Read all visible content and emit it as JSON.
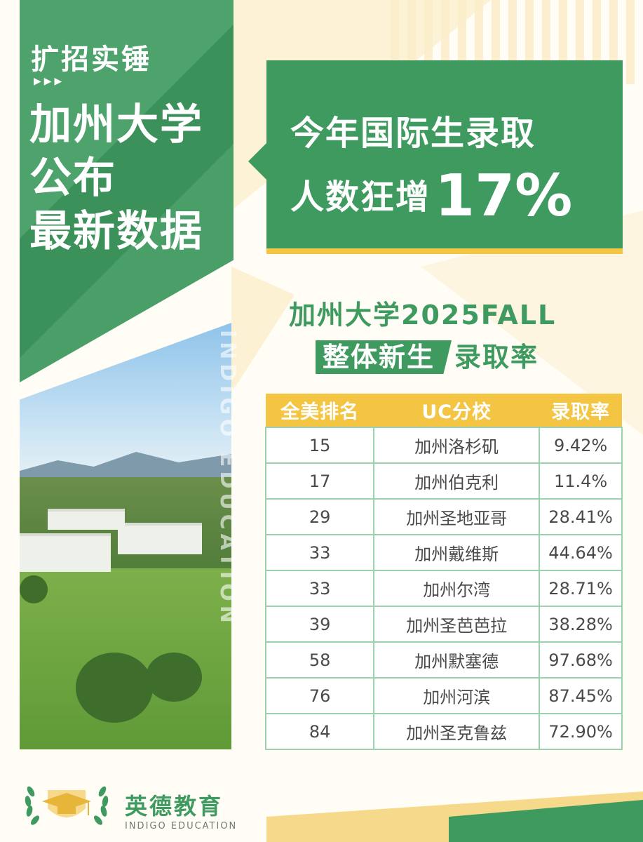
{
  "left": {
    "tagline": "扩招实锤",
    "arrows": "▶▶▶",
    "headline_lines": [
      "加州大学",
      "公布",
      "最新数据"
    ]
  },
  "callout": {
    "line1": "今年国际生录取",
    "line2": "人数狂增",
    "percent": "17%"
  },
  "watermark": "INDIGO EDUCATION",
  "title": {
    "line1": "加州大学2025FALL",
    "highlight": "整体新生",
    "rest": "录取率"
  },
  "table": {
    "headers": [
      "全美排名",
      "UC分校",
      "录取率"
    ],
    "rows": [
      [
        "15",
        "加州洛杉矶",
        "9.42%"
      ],
      [
        "17",
        "加州伯克利",
        "11.4%"
      ],
      [
        "29",
        "加州圣地亚哥",
        "28.41%"
      ],
      [
        "33",
        "加州戴维斯",
        "44.64%"
      ],
      [
        "33",
        "加州尔湾",
        "28.71%"
      ],
      [
        "39",
        "加州圣芭芭拉",
        "38.28%"
      ],
      [
        "58",
        "加州默塞德",
        "97.68%"
      ],
      [
        "76",
        "加州河滨",
        "87.45%"
      ],
      [
        "84",
        "加州圣克鲁兹",
        "72.90%"
      ]
    ]
  },
  "brand": {
    "name_cn": "英德教育",
    "name_en": "INDIGO EDUCATION"
  },
  "colors": {
    "green": "#3f9a5f",
    "yellow": "#f4c443",
    "cream": "#fffdf6"
  }
}
